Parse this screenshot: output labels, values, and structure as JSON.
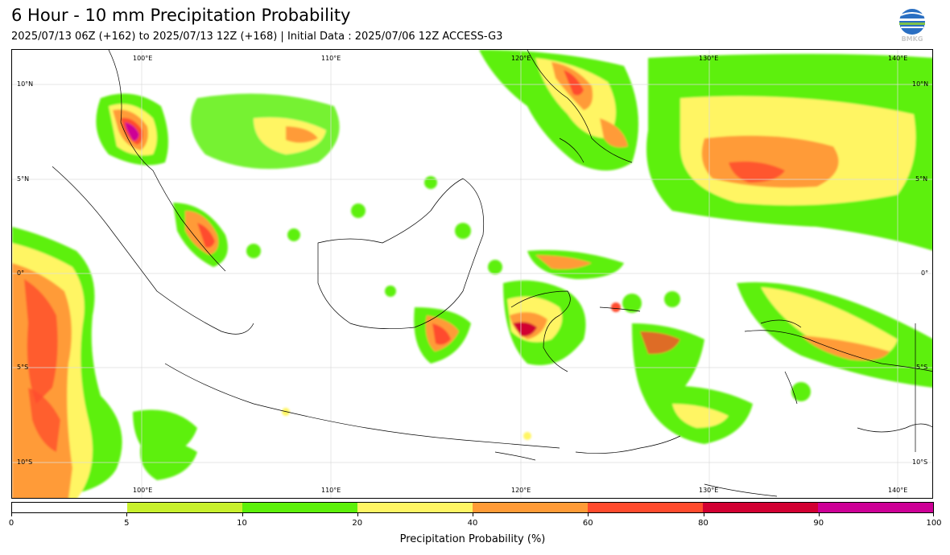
{
  "header": {
    "title": "6 Hour - 10 mm Precipitation Probability",
    "subtitle": "2025/07/13 06Z (+162) to 2025/07/13 12Z (+168) | Initial Data : 2025/07/06 12Z ACCESS-G3",
    "logo_text": "BMKG",
    "logo_icon": "bmkg-globe-logo"
  },
  "map": {
    "lon_labels": [
      "100°E",
      "110°E",
      "120°E",
      "130°E",
      "140°E"
    ],
    "lat_labels": [
      "10°N",
      "5°N",
      "0°",
      "5°S",
      "10°S"
    ]
  },
  "colorbar": {
    "title": "Precipitation Probability (%)",
    "ticks": [
      "0",
      "5",
      "10",
      "20",
      "40",
      "60",
      "80",
      "90",
      "100"
    ],
    "colors": [
      "#ffffff",
      "#c8f02d",
      "#5df00a",
      "#fff564",
      "#ff9b37",
      "#ff4b2d",
      "#d20032",
      "#cd0096"
    ]
  }
}
